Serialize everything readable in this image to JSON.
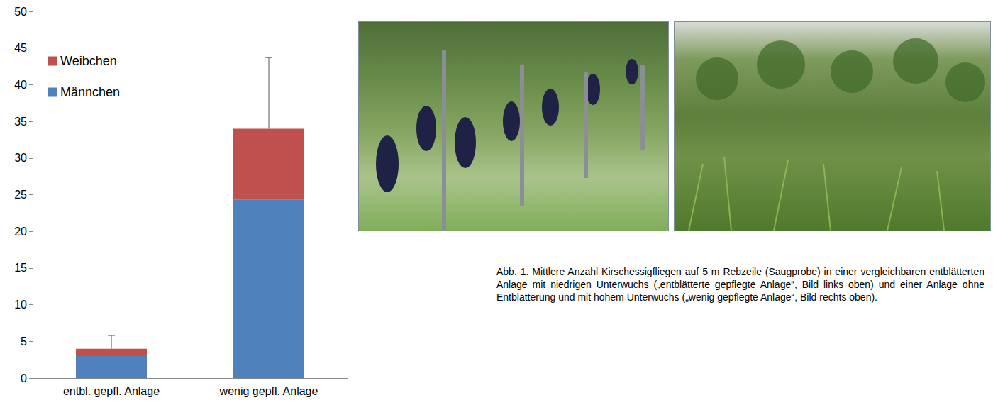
{
  "chart_data": {
    "type": "bar",
    "categories": [
      "entbl. gepfl. Anlage",
      "wenig gepfl. Anlage"
    ],
    "series": [
      {
        "name": "Männchen",
        "color": "#4f81bd",
        "values": [
          3,
          24.3
        ]
      },
      {
        "name": "Weibchen",
        "color": "#c0504d",
        "values": [
          1,
          9.7
        ]
      }
    ],
    "errors": [
      1.8,
      9.7
    ],
    "ylim": [
      0,
      50
    ],
    "yticks": [
      0,
      5,
      10,
      15,
      20,
      25,
      30,
      35,
      40,
      45,
      50
    ],
    "stacked": true,
    "grid": false,
    "legend": "upper left"
  },
  "caption": "Abb. 1. Mittlere Anzahl Kirschessigfliegen auf 5 m Rebzeile (Saugprobe) in einer vergleichbaren entblätterten Anlage mit niedrigen Unterwuchs („entblätterte gepflegte Anlage“, Bild links oben) und einer Anlage ohne Entblätterung und mit hohem Unterwuchs („wenig gepflegte Anlage“, Bild rechts oben)."
}
